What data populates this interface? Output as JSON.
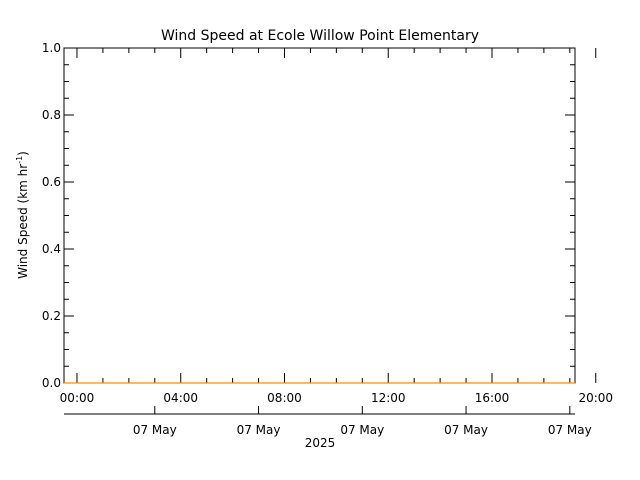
{
  "chart_data": {
    "type": "line",
    "title": "Wind Speed at Ecole Willow Point Elementary",
    "ylabel": {
      "main": "Wind Speed (km hr",
      "sup": "-1",
      "close": ")"
    },
    "ylim": [
      0.0,
      1.0
    ],
    "y_ticks": [
      "0.0",
      "0.2",
      "0.4",
      "0.6",
      "0.8",
      "1.0"
    ],
    "y_tick_values": [
      0.0,
      0.2,
      0.4,
      0.6,
      0.8,
      1.0
    ],
    "x_hour_ticks": [
      "00:00",
      "04:00",
      "08:00",
      "12:00",
      "16:00",
      "20:00"
    ],
    "x_hour_values": [
      0,
      4,
      8,
      12,
      16,
      20
    ],
    "x_date_ticks": [
      "07 May",
      "07 May",
      "07 May",
      "07 May",
      "07 May"
    ],
    "x_date_values": [
      3,
      7,
      11,
      15,
      19
    ],
    "year_label": "2025",
    "xlim_hours": [
      -0.5,
      19.2
    ],
    "grid": false,
    "series": [
      {
        "color": "#ff8c00",
        "x": [
          -0.5,
          19.2
        ],
        "y": [
          0.0,
          0.0
        ]
      }
    ]
  }
}
